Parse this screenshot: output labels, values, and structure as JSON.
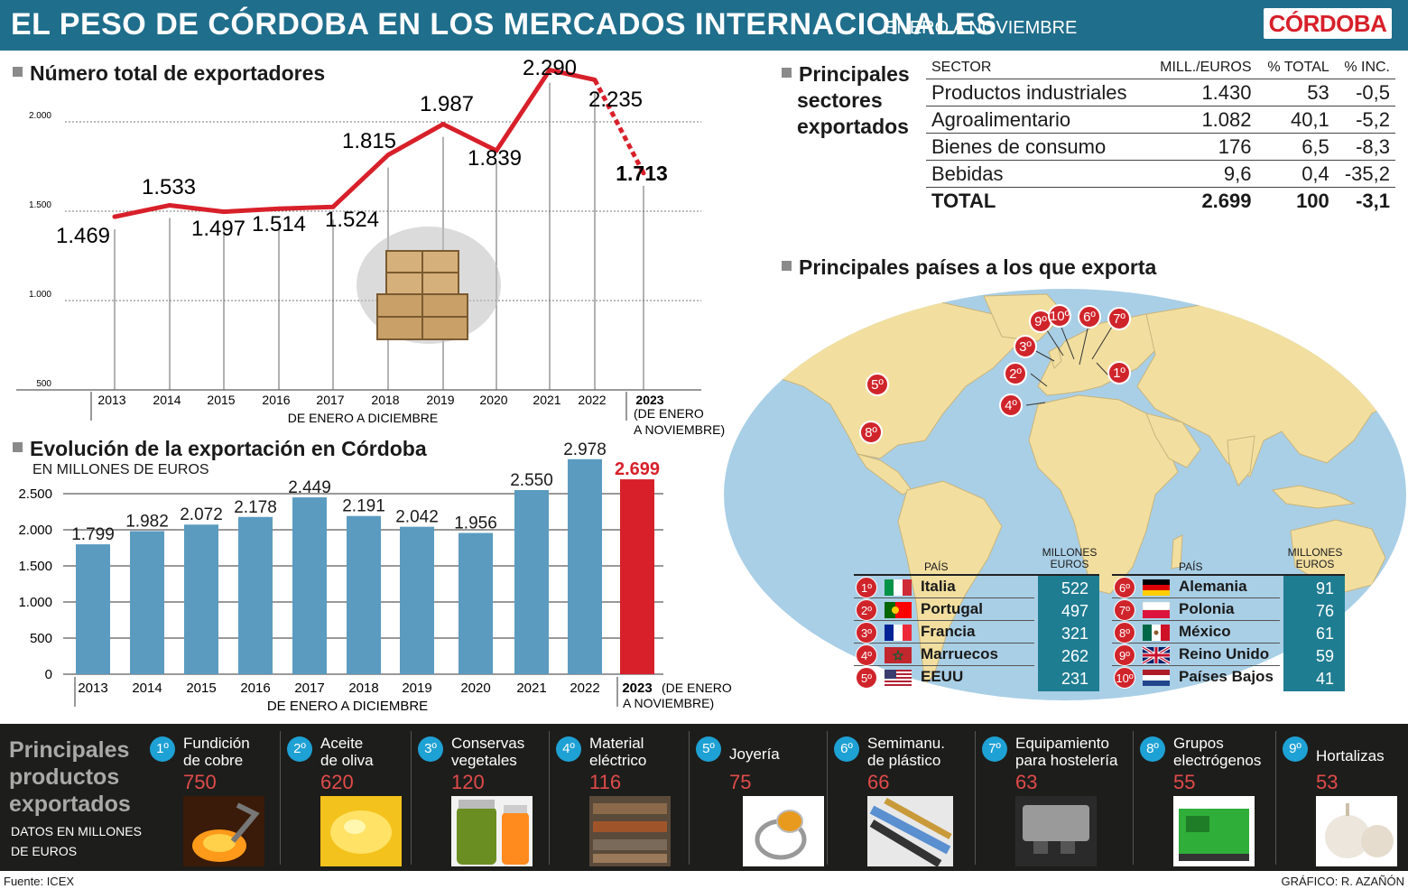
{
  "header": {
    "title": "EL PESO DE CÓRDOBA EN LOS MERCADOS INTERNACIONALES",
    "subtitle": "ENERO A NOVIEMBRE",
    "logo": "CÓRDOBA"
  },
  "colors": {
    "header_bg": "#1f6e8c",
    "line_red": "#d8202a",
    "bar_blue": "#5b9bc0",
    "bar_red": "#d8202a",
    "value_teal": "#1f7d92",
    "rank_red": "#d0242b",
    "product_blue": "#1ea1d4"
  },
  "exporters": {
    "title": "Número total de exportadores",
    "period_label": "DE ENERO A DICIEMBRE",
    "note_2023": [
      "(DE ENERO",
      "A NOVIEMBRE)"
    ]
  },
  "evolution": {
    "title": "Evolución de la exportación en Córdoba",
    "subtitle": "EN MILLONES DE EUROS",
    "period_label": "DE ENERO A DICIEMBRE",
    "note_2023": [
      "(DE ENERO",
      "A NOVIEMBRE)"
    ]
  },
  "chart_data": [
    {
      "type": "line",
      "title": "Número total de exportadores",
      "x": [
        "2013",
        "2014",
        "2015",
        "2016",
        "2017",
        "2018",
        "2019",
        "2020",
        "2021",
        "2022",
        "2023"
      ],
      "values": [
        1469,
        1533,
        1497,
        1514,
        1524,
        1815,
        1987,
        1839,
        2290,
        2235,
        1713
      ],
      "labels": [
        "1.469",
        "1.533",
        "1.497",
        "1.514",
        "1.524",
        "1.815",
        "1.987",
        "1.839",
        "2.290",
        "2.235",
        "1.713"
      ],
      "yticks": [
        500,
        1000,
        1500,
        2000
      ],
      "ytick_labels": [
        "500",
        "1.000",
        "1.500",
        "2.000"
      ],
      "ylim": [
        500,
        2300
      ],
      "dashed_last_segment": true
    },
    {
      "type": "bar",
      "title": "Evolución de la exportación en Córdoba",
      "ylabel": "EN MILLONES DE EUROS",
      "categories": [
        "2013",
        "2014",
        "2015",
        "2016",
        "2017",
        "2018",
        "2019",
        "2020",
        "2021",
        "2022",
        "2023"
      ],
      "values": [
        1799,
        1982,
        2072,
        2178,
        2449,
        2191,
        2042,
        1956,
        2550,
        2978,
        2699
      ],
      "labels": [
        "1.799",
        "1.982",
        "2.072",
        "2.178",
        "2.449",
        "2.191",
        "2.042",
        "1.956",
        "2.550",
        "2.978",
        "2.699"
      ],
      "yticks": [
        0,
        500,
        1000,
        1500,
        2000,
        2500
      ],
      "ytick_labels": [
        "0",
        "500",
        "1.000",
        "1.500",
        "2.000",
        "2.500"
      ],
      "ylim": [
        0,
        3000
      ],
      "highlight_last": true
    }
  ],
  "sectors": {
    "title": [
      "Principales",
      "sectores",
      "exportados"
    ],
    "headers": [
      "SECTOR",
      "MILL./EUROS",
      "% TOTAL",
      "% INC."
    ],
    "rows": [
      [
        "Productos industriales",
        "1.430",
        "53",
        "-0,5"
      ],
      [
        "Agroalimentario",
        "1.082",
        "40,1",
        "-5,2"
      ],
      [
        "Bienes de consumo",
        "176",
        "6,5",
        "-8,3"
      ],
      [
        "Bebidas",
        "9,6",
        "0,4",
        "-35,2"
      ]
    ],
    "total": [
      "TOTAL",
      "2.699",
      "100",
      "-3,1"
    ]
  },
  "countries": {
    "title": "Principales países a los que exporta",
    "header_country": "PAÍS",
    "header_value": [
      "MILLONES",
      "EUROS"
    ],
    "left": [
      {
        "rank": "1º",
        "name": "Italia",
        "value": "522",
        "flag": "italy"
      },
      {
        "rank": "2º",
        "name": "Portugal",
        "value": "497",
        "flag": "portugal"
      },
      {
        "rank": "3º",
        "name": "Francia",
        "value": "321",
        "flag": "france"
      },
      {
        "rank": "4º",
        "name": "Marruecos",
        "value": "262",
        "flag": "morocco"
      },
      {
        "rank": "5º",
        "name": "EEUU",
        "value": "231",
        "flag": "usa"
      }
    ],
    "right": [
      {
        "rank": "6º",
        "name": "Alemania",
        "value": "91",
        "flag": "germany"
      },
      {
        "rank": "7º",
        "name": "Polonia",
        "value": "76",
        "flag": "poland"
      },
      {
        "rank": "8º",
        "name": "México",
        "value": "61",
        "flag": "mexico"
      },
      {
        "rank": "9º",
        "name": "Reino Unido",
        "value": "59",
        "flag": "uk"
      },
      {
        "rank": "10º",
        "name": "Países Bajos",
        "value": "41",
        "flag": "netherlands"
      }
    ],
    "map_pins": [
      "1º",
      "2º",
      "3º",
      "4º",
      "5º",
      "6º",
      "7º",
      "8º",
      "9º",
      "10º"
    ]
  },
  "products": {
    "title": [
      "Principales",
      "productos",
      "exportados"
    ],
    "subtitle": [
      "DATOS EN MILLONES",
      "DE EUROS"
    ],
    "items": [
      {
        "rank": "1º",
        "name": [
          "Fundición",
          "de cobre"
        ],
        "value": "750",
        "icon": "molten-copper-photo"
      },
      {
        "rank": "2º",
        "name": [
          "Aceite",
          "de oliva"
        ],
        "value": "620",
        "icon": "olive-oil-photo"
      },
      {
        "rank": "3º",
        "name": [
          "Conservas",
          "vegetales"
        ],
        "value": "120",
        "icon": "preserves-jar-photo"
      },
      {
        "rank": "4º",
        "name": [
          "Material",
          "eléctrico"
        ],
        "value": "116",
        "icon": "electrical-material-photo"
      },
      {
        "rank": "5º",
        "name": [
          "Joyería",
          ""
        ],
        "value": "75",
        "icon": "ring-photo"
      },
      {
        "rank": "6º",
        "name": [
          "Semimanu.",
          "de plástico"
        ],
        "value": "66",
        "icon": "plastic-tubes-photo"
      },
      {
        "rank": "7º",
        "name": [
          "Equipamiento",
          "para hostelería"
        ],
        "value": "63",
        "icon": "coffee-machine-photo"
      },
      {
        "rank": "8º",
        "name": [
          "Grupos",
          "electrógenos"
        ],
        "value": "55",
        "icon": "generator-photo"
      },
      {
        "rank": "9º",
        "name": [
          "Hortalizas",
          ""
        ],
        "value": "53",
        "icon": "garlic-photo"
      }
    ]
  },
  "footer": {
    "source": "Fuente: ICEX",
    "credit": "GRÁFICO: R. AZAÑÓN"
  }
}
